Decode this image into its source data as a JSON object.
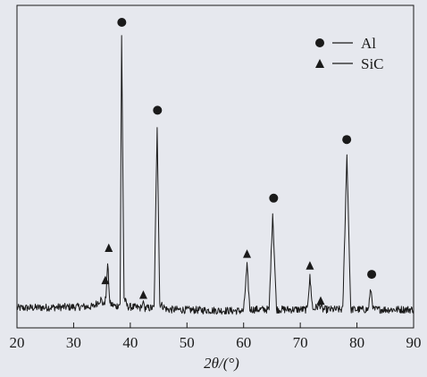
{
  "chart_data": {
    "type": "line",
    "title": "",
    "xlabel": "2θ/(°)",
    "ylabel": "",
    "xlim": [
      20,
      90
    ],
    "ylim": [
      0,
      100
    ],
    "x_ticks": [
      "20",
      "30",
      "40",
      "50",
      "60",
      "70",
      "80",
      "90"
    ],
    "grid": false,
    "legend": {
      "placement": "top-right",
      "entries": [
        {
          "marker": "circle",
          "label": "Al"
        },
        {
          "marker": "triangle",
          "label": "SiC"
        }
      ]
    },
    "series": [
      {
        "points": [
          [
            20,
            2.5
          ],
          [
            33.5,
            3.0
          ],
          [
            34.8,
            5.5
          ],
          [
            35.3,
            3.5
          ],
          [
            35.7,
            6.0
          ],
          [
            36.0,
            18.0
          ],
          [
            36.4,
            4.0
          ],
          [
            37.5,
            3.0
          ],
          [
            38.2,
            4.0
          ],
          [
            38.47,
            95.0
          ],
          [
            38.9,
            6.0
          ],
          [
            39.5,
            3.0
          ],
          [
            42.0,
            2.5
          ],
          [
            42.3,
            5.0
          ],
          [
            42.6,
            2.5
          ],
          [
            44.2,
            2.5
          ],
          [
            44.74,
            65.0
          ],
          [
            45.2,
            4.0
          ],
          [
            46.5,
            2.0
          ],
          [
            60.0,
            1.5
          ],
          [
            60.6,
            17.0
          ],
          [
            61.1,
            2.0
          ],
          [
            64.5,
            2.0
          ],
          [
            65.13,
            35.0
          ],
          [
            65.8,
            2.0
          ],
          [
            71.2,
            2.0
          ],
          [
            71.7,
            13.0
          ],
          [
            72.2,
            2.0
          ],
          [
            73.5,
            3.5
          ],
          [
            74.0,
            2.0
          ],
          [
            77.5,
            2.0
          ],
          [
            78.23,
            55.0
          ],
          [
            78.9,
            2.0
          ],
          [
            82.0,
            2.0
          ],
          [
            82.44,
            9.0
          ],
          [
            82.9,
            2.0
          ],
          [
            90,
            2.0
          ]
        ]
      }
    ],
    "annotations": [
      {
        "marker": "circle",
        "x": 38.5,
        "y": 100
      },
      {
        "marker": "circle",
        "x": 44.8,
        "y": 70
      },
      {
        "marker": "circle",
        "x": 65.3,
        "y": 40
      },
      {
        "marker": "circle",
        "x": 78.2,
        "y": 60
      },
      {
        "marker": "circle",
        "x": 82.6,
        "y": 14
      },
      {
        "marker": "triangle",
        "x": 35.6,
        "y": 12
      },
      {
        "marker": "triangle",
        "x": 36.2,
        "y": 23
      },
      {
        "marker": "triangle",
        "x": 42.3,
        "y": 7
      },
      {
        "marker": "triangle",
        "x": 60.6,
        "y": 21
      },
      {
        "marker": "triangle",
        "x": 71.7,
        "y": 17
      },
      {
        "marker": "triangle",
        "x": 73.6,
        "y": 5
      }
    ]
  },
  "colors": {
    "background": "#e6e8ee",
    "ink": "#1a1a1a"
  }
}
